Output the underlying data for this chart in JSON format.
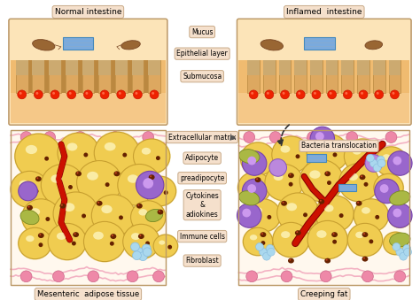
{
  "background_color": "#ffffff",
  "labels": {
    "normal_intestine": "Normal intestine",
    "inflamed_intestine": "Inflamed  intestine",
    "mucus": "Mucus",
    "epithelial_layer": "Epithelial layer",
    "submucosa": "Submucosa",
    "bacteria_translocation": "Bacteria translocation",
    "extracellular_matrix": "Extracellular matrix",
    "adipocyte": "Adipocyte",
    "preadipocyte": "preadipocyte",
    "cytokines": "Cytokines\n&\nadiokines",
    "immune_cells": "Immune cells",
    "fibroblast": "Fibroblast",
    "mesenteric": "Mesenteric  adipose tissue",
    "creeping_fat": "Creeping fat"
  },
  "colors": {
    "intestine_top_bg": "#f8d090",
    "intestine_mid_bg": "#e8b870",
    "intestine_bot_bg": "#f0c880",
    "cell_col_fill": "#d8a860",
    "cell_col_edge": "#b88840",
    "mucus_blue": "#7aaadd",
    "red_dot": "#dd2200",
    "label_box_fill": "#f5e0cc",
    "label_box_edge": "#c8aa88",
    "adipocyte_fill": "#f0cc50",
    "adipocyte_edge": "#c8a030",
    "adipocyte_grad": "#e0b830",
    "blood_vessel": "#cc1100",
    "pink_fiber": "#f0a0b8",
    "pink_sphere": "#ee88a8",
    "purple_large": "#9966cc",
    "purple_small": "#bb88dd",
    "green_cell": "#99aa44",
    "light_blue": "#aad8ee",
    "brown_bact": "#884422",
    "dark_dot": "#662200",
    "olive_cell": "#aab844",
    "panel_border": "#ddbbaa",
    "panel_bg": "#fff8ee"
  },
  "figsize": [
    4.74,
    3.39
  ],
  "dpi": 100
}
